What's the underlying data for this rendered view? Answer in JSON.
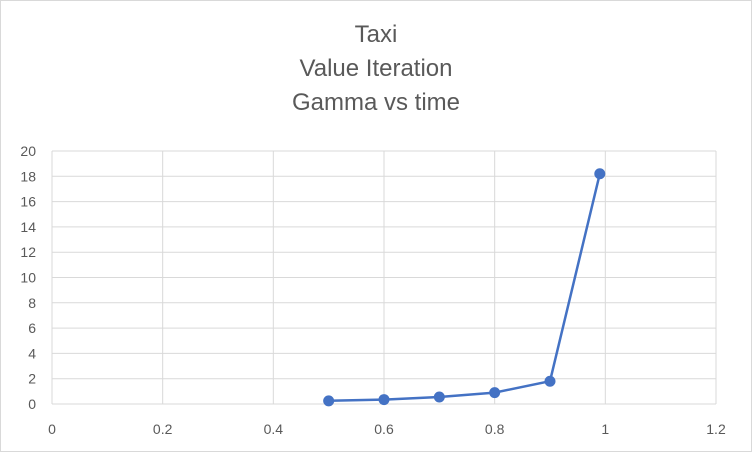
{
  "chart_data": {
    "type": "scatter",
    "title_lines": [
      "Taxi",
      "Value Iteration",
      "Gamma vs time"
    ],
    "xlabel": "",
    "ylabel": "",
    "xlim": [
      0,
      1.2
    ],
    "ylim": [
      0,
      20
    ],
    "x_ticks": [
      "0",
      "0.2",
      "0.4",
      "0.6",
      "0.8",
      "1",
      "1.2"
    ],
    "y_ticks": [
      "0",
      "2",
      "4",
      "6",
      "8",
      "10",
      "12",
      "14",
      "16",
      "18",
      "20"
    ],
    "grid": true,
    "legend": "none",
    "series": [
      {
        "x": [
          0.5,
          0.6,
          0.7,
          0.8,
          0.9,
          0.99
        ],
        "y": [
          0.25,
          0.35,
          0.55,
          0.9,
          1.8,
          18.2
        ],
        "color": "#4472c4",
        "lines": true,
        "markers": true
      }
    ],
    "gridline_color": "#d9d9d9",
    "text_color": "#595959"
  }
}
